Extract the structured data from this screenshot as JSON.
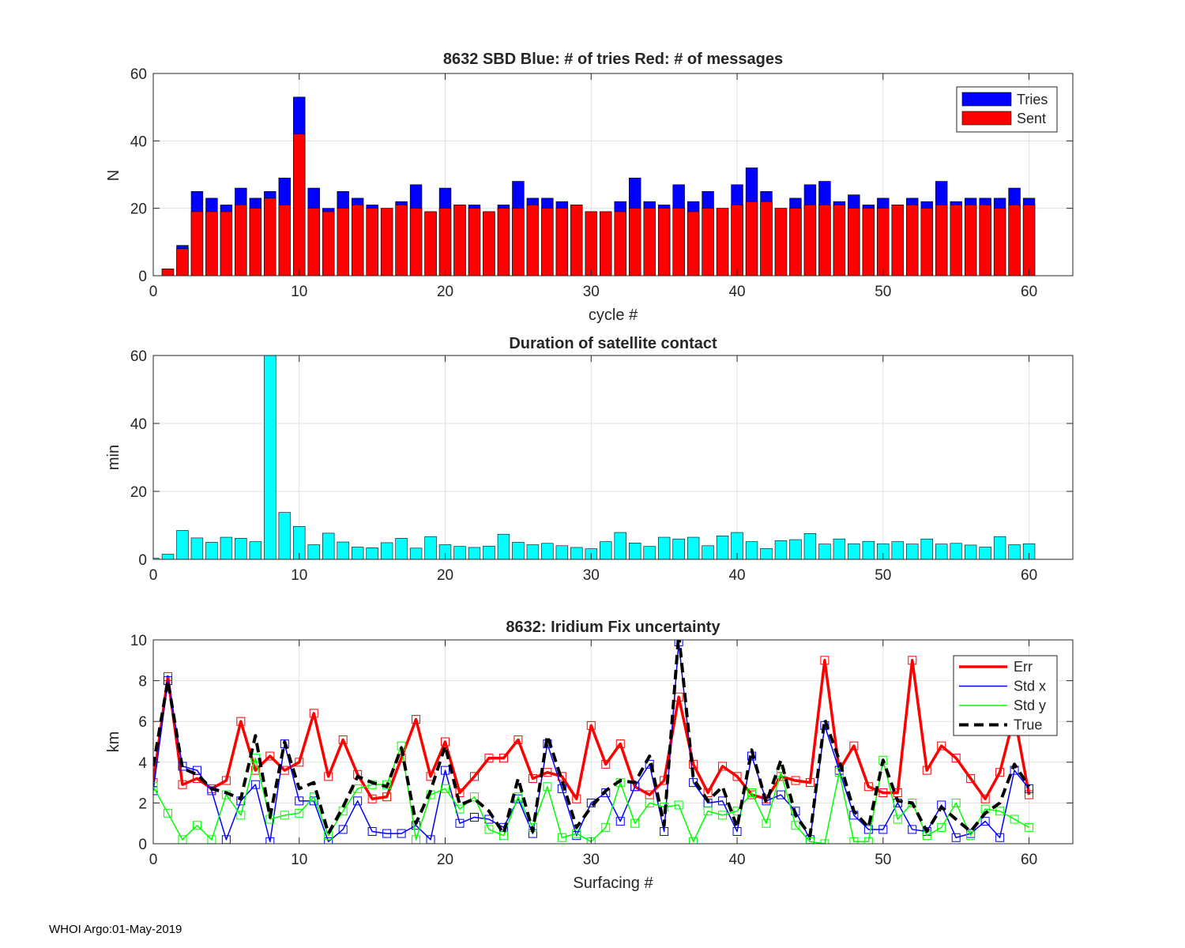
{
  "footer": "WHOI Argo:01-May-2019",
  "colors": {
    "tries": "#0000ff",
    "sent": "#ff0000",
    "duration": "#00ffff",
    "err": "#ff0000",
    "stdx": "#0000ff",
    "stdy": "#00ff00",
    "true": "#000000",
    "grid": "#e0e0e0",
    "axis": "#262626"
  },
  "chart_data": [
    {
      "type": "bar",
      "title": "8632 SBD  Blue: # of tries   Red: # of messages",
      "xlabel": "cycle #",
      "ylabel": "N",
      "xlim": [
        0,
        63
      ],
      "ylim": [
        0,
        60
      ],
      "xticks": [
        0,
        10,
        20,
        30,
        40,
        50,
        60
      ],
      "yticks": [
        0,
        20,
        40,
        60
      ],
      "legend": {
        "location": "top-right",
        "entries": [
          "Tries",
          "Sent"
        ]
      },
      "x": [
        1,
        2,
        3,
        4,
        5,
        6,
        7,
        8,
        9,
        10,
        11,
        12,
        13,
        14,
        15,
        16,
        17,
        18,
        19,
        20,
        21,
        22,
        23,
        24,
        25,
        26,
        27,
        28,
        29,
        30,
        31,
        32,
        33,
        34,
        35,
        36,
        37,
        38,
        39,
        40,
        41,
        42,
        43,
        44,
        45,
        46,
        47,
        48,
        49,
        50,
        51,
        52,
        53,
        54,
        55,
        56,
        57,
        58,
        59,
        60
      ],
      "series": [
        {
          "name": "Tries",
          "values": [
            2,
            9,
            25,
            23,
            21,
            26,
            23,
            25,
            29,
            53,
            26,
            20,
            25,
            23,
            21,
            20,
            22,
            27,
            19,
            26,
            21,
            21,
            19,
            21,
            28,
            23,
            23,
            22,
            21,
            19,
            19,
            22,
            29,
            22,
            21,
            27,
            22,
            25,
            20,
            27,
            32,
            25,
            20,
            23,
            27,
            28,
            22,
            24,
            21,
            23,
            21,
            23,
            22,
            28,
            22,
            23,
            23,
            23,
            26,
            23
          ]
        },
        {
          "name": "Sent",
          "values": [
            2,
            8,
            19,
            19,
            19,
            21,
            20,
            23,
            21,
            42,
            20,
            19,
            20,
            21,
            20,
            20,
            21,
            20,
            19,
            20,
            21,
            20,
            19,
            20,
            20,
            21,
            20,
            20,
            21,
            19,
            19,
            19,
            20,
            20,
            20,
            20,
            19,
            20,
            20,
            21,
            22,
            22,
            20,
            20,
            21,
            21,
            21,
            20,
            20,
            20,
            21,
            21,
            20,
            21,
            21,
            21,
            21,
            20,
            21,
            21
          ]
        }
      ]
    },
    {
      "type": "bar",
      "title": "Duration of satellite contact",
      "xlabel": "",
      "ylabel": "min",
      "xlim": [
        0,
        63
      ],
      "ylim": [
        0,
        60
      ],
      "xticks": [
        0,
        10,
        20,
        30,
        40,
        50,
        60
      ],
      "yticks": [
        0,
        20,
        40,
        60
      ],
      "x": [
        0,
        1,
        2,
        3,
        4,
        5,
        6,
        7,
        8,
        9,
        10,
        11,
        12,
        13,
        14,
        15,
        16,
        17,
        18,
        19,
        20,
        21,
        22,
        23,
        24,
        25,
        26,
        27,
        28,
        29,
        30,
        31,
        32,
        33,
        34,
        35,
        36,
        37,
        38,
        39,
        40,
        41,
        42,
        43,
        44,
        45,
        46,
        47,
        48,
        49,
        50,
        51,
        52,
        53,
        54,
        55,
        56,
        57,
        58,
        59,
        60
      ],
      "values": [
        0.3,
        1.5,
        8.5,
        6.3,
        5,
        6.5,
        6.2,
        5.2,
        60,
        13.8,
        9.7,
        4.3,
        7.7,
        5.1,
        3.6,
        3.4,
        4.9,
        6.2,
        3.3,
        6.7,
        4.3,
        3.8,
        3.5,
        3.9,
        7.4,
        5,
        4.3,
        4.7,
        4,
        3.5,
        3.1,
        5.2,
        7.9,
        4.8,
        3.8,
        6.5,
        6,
        6.5,
        4,
        6.9,
        7.9,
        5.2,
        3.2,
        5.5,
        5.8,
        7.6,
        4.5,
        6,
        4.6,
        5.3,
        4.6,
        5.2,
        4.5,
        6,
        4.5,
        4.7,
        4.2,
        3.6,
        6.7,
        4.3,
        4.6
      ]
    },
    {
      "type": "line",
      "title": "8632: Iridium Fix uncertainty",
      "xlabel": "Surfacing #",
      "ylabel": "km",
      "xlim": [
        0,
        63
      ],
      "ylim": [
        0,
        10
      ],
      "xticks": [
        0,
        10,
        20,
        30,
        40,
        50,
        60
      ],
      "yticks": [
        0,
        2,
        4,
        6,
        8,
        10
      ],
      "legend": {
        "location": "top-right",
        "entries": [
          "Err",
          "Std x",
          "Std y",
          "True"
        ]
      },
      "x": [
        0,
        1,
        2,
        3,
        4,
        5,
        6,
        7,
        8,
        9,
        10,
        11,
        12,
        13,
        14,
        15,
        16,
        17,
        18,
        19,
        20,
        21,
        22,
        23,
        24,
        25,
        26,
        27,
        28,
        29,
        30,
        31,
        32,
        33,
        34,
        35,
        36,
        37,
        38,
        39,
        40,
        41,
        42,
        43,
        44,
        45,
        46,
        47,
        48,
        49,
        50,
        51,
        52,
        53,
        54,
        55,
        56,
        57,
        58,
        59,
        60
      ],
      "series": [
        {
          "name": "Err",
          "markers": true,
          "values": [
            3,
            8.2,
            2.9,
            3.2,
            2.7,
            3.1,
            6,
            3.6,
            4.3,
            3.6,
            4,
            6.4,
            3.3,
            5.1,
            3.4,
            2.2,
            2.3,
            4.2,
            6.1,
            3.3,
            5,
            2.5,
            3.3,
            4.2,
            4.2,
            5.1,
            3.2,
            3.5,
            3.3,
            2.2,
            5.8,
            3.9,
            4.9,
            2.8,
            2.4,
            3.1,
            7.2,
            3.9,
            2.5,
            3.8,
            3.3,
            2.4,
            2.2,
            3.3,
            3.1,
            3,
            9,
            3.6,
            4.8,
            2.8,
            2.5,
            2.5,
            9,
            3.6,
            4.8,
            4.2,
            3.2,
            2.2,
            3.5,
            6.3,
            2.4
          ]
        },
        {
          "name": "Std x",
          "markers": true,
          "values": [
            2.6,
            8,
            3.8,
            3.6,
            2.6,
            0.2,
            2.1,
            2.9,
            0.1,
            4.9,
            2.1,
            2.1,
            0.1,
            0.7,
            2.1,
            0.6,
            0.5,
            0.5,
            0.9,
            0.2,
            3.6,
            1,
            1.3,
            1.2,
            0.8,
            2.2,
            0.5,
            4.9,
            2.7,
            0.4,
            2,
            2.5,
            1.1,
            2.8,
            3.9,
            0.6,
            9.9,
            3,
            2,
            2.1,
            0.6,
            4.3,
            2.1,
            2.4,
            1.6,
            0.2,
            5.8,
            3.6,
            1.4,
            0.7,
            0.7,
            2,
            0.7,
            0.6,
            1.9,
            0.3,
            0.5,
            1.1,
            0.3,
            3.6,
            2.7
          ]
        },
        {
          "name": "Std y",
          "markers": true,
          "values": [
            2.8,
            1.5,
            0.2,
            0.9,
            0.2,
            2.4,
            1.4,
            4.2,
            1.2,
            1.4,
            1.5,
            2.3,
            0.4,
            1.6,
            2.7,
            2.9,
            2.9,
            4.8,
            0.2,
            2.4,
            2.7,
            1.7,
            2.3,
            0.7,
            0.4,
            2.3,
            0.8,
            2.8,
            0.3,
            0.5,
            0.1,
            0.8,
            3,
            1,
            2,
            1.8,
            1.9,
            0.1,
            1.6,
            1.4,
            1.6,
            2.5,
            1,
            3.5,
            0.9,
            0.1,
            0,
            3.5,
            0.1,
            0.1,
            4.1,
            1.2,
            2,
            0.4,
            0.8,
            2,
            0.4,
            1.7,
            1.6,
            1.2,
            0.8
          ]
        },
        {
          "name": "True",
          "markers": false,
          "dashed": true,
          "values": [
            3.8,
            8,
            3.7,
            3.4,
            2.7,
            2.5,
            2.2,
            5.3,
            1.3,
            5,
            2.7,
            3,
            0.5,
            1.8,
            3.3,
            3,
            2.8,
            4.7,
            1,
            2.6,
            4.8,
            1.9,
            2.2,
            1.6,
            0.5,
            3.2,
            0.6,
            5.3,
            3.1,
            0.8,
            1.8,
            2.6,
            3.1,
            3,
            4.3,
            0.9,
            10.3,
            3.2,
            2.1,
            2.8,
            0.8,
            4.6,
            2,
            4.1,
            1.4,
            0.4,
            6.1,
            4.1,
            1.6,
            0.8,
            4.1,
            2.1,
            2,
            0.6,
            1.8,
            1.2,
            0.6,
            1.5,
            2,
            3.9,
            2.8
          ]
        }
      ]
    }
  ]
}
